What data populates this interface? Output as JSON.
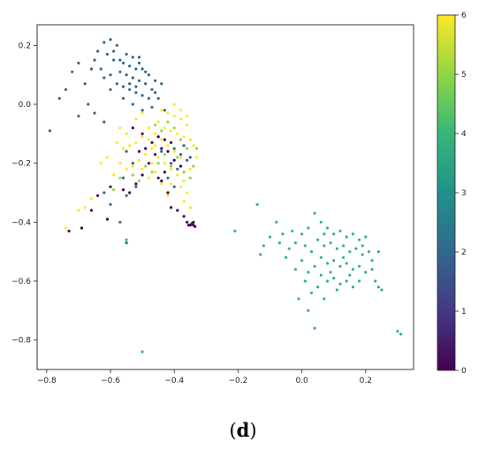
{
  "caption": {
    "open": "(",
    "letter": "d",
    "close": ")"
  },
  "chart_data": {
    "type": "scatter",
    "title": "",
    "xlabel": "",
    "ylabel": "",
    "xlim": [
      -0.83,
      0.35
    ],
    "ylim": [
      -0.9,
      0.27
    ],
    "grid": false,
    "x_ticks": [
      -0.8,
      -0.6,
      -0.4,
      -0.2,
      0.0,
      0.2
    ],
    "x_tick_labels": [
      "−0.8",
      "−0.6",
      "−0.4",
      "−0.2",
      "0.0",
      "0.2"
    ],
    "y_ticks": [
      0.2,
      0.0,
      -0.2,
      -0.4,
      -0.6,
      -0.8
    ],
    "y_tick_labels": [
      "0.2",
      "0.0",
      "−0.2",
      "−0.4",
      "−0.6",
      "−0.8"
    ],
    "colorbar": {
      "colormap": "viridis",
      "range": [
        0,
        6
      ],
      "ticks": [
        0,
        1,
        2,
        3,
        4,
        5,
        6
      ],
      "tick_labels": [
        "0",
        "1",
        "2",
        "3",
        "4",
        "5",
        "6"
      ],
      "stops": [
        "#440154",
        "#443983",
        "#31688e",
        "#21918c",
        "#35b779",
        "#90d743",
        "#fde725"
      ]
    },
    "series": [
      {
        "value": 2,
        "color": "#31688e",
        "points": [
          [
            -0.62,
            0.21
          ],
          [
            -0.6,
            0.22
          ],
          [
            -0.58,
            0.2
          ],
          [
            -0.55,
            0.17
          ],
          [
            -0.53,
            0.16
          ],
          [
            -0.51,
            0.16
          ],
          [
            -0.64,
            0.18
          ],
          [
            -0.61,
            0.17
          ],
          [
            -0.59,
            0.15
          ],
          [
            -0.56,
            0.14
          ],
          [
            -0.54,
            0.13
          ],
          [
            -0.52,
            0.12
          ],
          [
            -0.5,
            0.12
          ],
          [
            -0.48,
            0.1
          ],
          [
            -0.46,
            0.08
          ],
          [
            -0.57,
            0.11
          ],
          [
            -0.55,
            0.1
          ],
          [
            -0.53,
            0.09
          ],
          [
            -0.51,
            0.08
          ],
          [
            -0.49,
            0.07
          ],
          [
            -0.58,
            0.07
          ],
          [
            -0.56,
            0.06
          ],
          [
            -0.54,
            0.05
          ],
          [
            -0.52,
            0.04
          ],
          [
            -0.5,
            0.03
          ],
          [
            -0.48,
            0.02
          ],
          [
            -0.46,
            0.04
          ],
          [
            -0.47,
            -0.01
          ],
          [
            -0.5,
            -0.02
          ],
          [
            -0.53,
            0.0
          ],
          [
            -0.56,
            0.02
          ],
          [
            -0.6,
            0.05
          ],
          [
            -0.62,
            0.09
          ],
          [
            -0.66,
            0.12
          ],
          [
            -0.68,
            0.07
          ],
          [
            -0.7,
            0.14
          ],
          [
            -0.72,
            0.11
          ],
          [
            -0.76,
            0.02
          ],
          [
            -0.74,
            0.05
          ],
          [
            -0.65,
            -0.03
          ],
          [
            -0.62,
            -0.06
          ],
          [
            -0.7,
            -0.04
          ],
          [
            -0.79,
            -0.09
          ],
          [
            -0.67,
            0.0
          ],
          [
            -0.6,
            0.1
          ],
          [
            -0.57,
            0.15
          ],
          [
            -0.54,
            0.07
          ],
          [
            -0.52,
            0.06
          ],
          [
            -0.49,
            0.11
          ],
          [
            -0.47,
            0.05
          ],
          [
            -0.45,
            0.02
          ],
          [
            -0.44,
            0.07
          ],
          [
            -0.43,
            -0.02
          ],
          [
            -0.55,
            -0.16
          ],
          [
            -0.53,
            -0.2
          ],
          [
            -0.56,
            -0.25
          ],
          [
            -0.52,
            -0.28
          ],
          [
            -0.55,
            -0.31
          ],
          [
            -0.6,
            -0.34
          ],
          [
            -0.62,
            -0.3
          ],
          [
            -0.57,
            -0.4
          ],
          [
            -0.55,
            -0.47
          ],
          [
            -0.4,
            -0.15
          ],
          [
            -0.38,
            -0.17
          ],
          [
            -0.36,
            -0.19
          ],
          [
            -0.41,
            -0.2
          ],
          [
            -0.39,
            -0.22
          ],
          [
            -0.37,
            -0.14
          ],
          [
            -0.35,
            -0.18
          ],
          [
            -0.42,
            -0.25
          ],
          [
            -0.44,
            -0.16
          ],
          [
            -0.4,
            -0.28
          ],
          [
            -0.65,
            0.15
          ],
          [
            -0.63,
            0.12
          ],
          [
            -0.59,
            0.18
          ],
          [
            -0.51,
            0.14
          ]
        ]
      },
      {
        "value": 4,
        "color": "#35b779",
        "points": [
          [
            0.04,
            -0.37
          ],
          [
            0.06,
            -0.4
          ],
          [
            0.02,
            -0.42
          ],
          [
            0.0,
            -0.44
          ],
          [
            -0.03,
            -0.43
          ],
          [
            -0.06,
            -0.44
          ],
          [
            -0.08,
            -0.4
          ],
          [
            -0.1,
            -0.45
          ],
          [
            -0.12,
            -0.48
          ],
          [
            -0.14,
            -0.34
          ],
          [
            -0.21,
            -0.43
          ],
          [
            -0.13,
            -0.51
          ],
          [
            0.08,
            -0.42
          ],
          [
            0.1,
            -0.44
          ],
          [
            0.12,
            -0.43
          ],
          [
            0.14,
            -0.45
          ],
          [
            0.16,
            -0.44
          ],
          [
            0.18,
            -0.46
          ],
          [
            0.2,
            -0.45
          ],
          [
            0.05,
            -0.46
          ],
          [
            0.07,
            -0.48
          ],
          [
            0.09,
            -0.47
          ],
          [
            0.11,
            -0.49
          ],
          [
            0.13,
            -0.48
          ],
          [
            0.15,
            -0.5
          ],
          [
            0.17,
            -0.49
          ],
          [
            0.19,
            -0.51
          ],
          [
            0.21,
            -0.5
          ],
          [
            0.03,
            -0.5
          ],
          [
            0.01,
            -0.48
          ],
          [
            -0.02,
            -0.47
          ],
          [
            -0.04,
            -0.49
          ],
          [
            0.06,
            -0.52
          ],
          [
            0.08,
            -0.54
          ],
          [
            0.1,
            -0.53
          ],
          [
            0.12,
            -0.55
          ],
          [
            0.14,
            -0.54
          ],
          [
            0.16,
            -0.56
          ],
          [
            0.18,
            -0.55
          ],
          [
            0.2,
            -0.57
          ],
          [
            0.22,
            -0.56
          ],
          [
            0.04,
            -0.55
          ],
          [
            0.02,
            -0.57
          ],
          [
            0.0,
            -0.53
          ],
          [
            -0.02,
            -0.56
          ],
          [
            0.06,
            -0.58
          ],
          [
            0.08,
            -0.6
          ],
          [
            0.1,
            -0.59
          ],
          [
            0.12,
            -0.61
          ],
          [
            0.14,
            -0.6
          ],
          [
            0.16,
            -0.62
          ],
          [
            0.05,
            -0.62
          ],
          [
            0.03,
            -0.64
          ],
          [
            0.01,
            -0.6
          ],
          [
            0.07,
            -0.66
          ],
          [
            0.02,
            -0.7
          ],
          [
            -0.01,
            -0.66
          ],
          [
            0.04,
            -0.76
          ],
          [
            0.23,
            -0.6
          ],
          [
            0.24,
            -0.62
          ],
          [
            0.25,
            -0.63
          ],
          [
            0.22,
            -0.53
          ],
          [
            0.24,
            -0.5
          ],
          [
            0.18,
            -0.6
          ],
          [
            0.15,
            -0.58
          ],
          [
            0.11,
            -0.63
          ],
          [
            0.09,
            -0.57
          ],
          [
            0.13,
            -0.52
          ],
          [
            0.19,
            -0.48
          ],
          [
            0.07,
            -0.44
          ],
          [
            -0.05,
            -0.52
          ],
          [
            -0.07,
            -0.47
          ],
          [
            0.3,
            -0.77
          ],
          [
            0.31,
            -0.78
          ],
          [
            -0.5,
            -0.84
          ],
          [
            -0.55,
            -0.46
          ]
        ]
      },
      {
        "value": 6,
        "color": "#fde725",
        "points": [
          [
            -0.44,
            -0.02
          ],
          [
            -0.42,
            -0.03
          ],
          [
            -0.4,
            -0.04
          ],
          [
            -0.38,
            -0.05
          ],
          [
            -0.36,
            -0.07
          ],
          [
            -0.45,
            -0.06
          ],
          [
            -0.43,
            -0.08
          ],
          [
            -0.41,
            -0.09
          ],
          [
            -0.39,
            -0.1
          ],
          [
            -0.37,
            -0.11
          ],
          [
            -0.35,
            -0.12
          ],
          [
            -0.46,
            -0.1
          ],
          [
            -0.48,
            -0.12
          ],
          [
            -0.5,
            -0.11
          ],
          [
            -0.52,
            -0.13
          ],
          [
            -0.54,
            -0.14
          ],
          [
            -0.47,
            -0.15
          ],
          [
            -0.45,
            -0.18
          ],
          [
            -0.43,
            -0.2
          ],
          [
            -0.41,
            -0.22
          ],
          [
            -0.39,
            -0.24
          ],
          [
            -0.37,
            -0.26
          ],
          [
            -0.49,
            -0.17
          ],
          [
            -0.51,
            -0.19
          ],
          [
            -0.53,
            -0.21
          ],
          [
            -0.55,
            -0.22
          ],
          [
            -0.57,
            -0.2
          ],
          [
            -0.56,
            -0.15
          ],
          [
            -0.58,
            -0.13
          ],
          [
            -0.34,
            -0.14
          ],
          [
            -0.33,
            -0.18
          ],
          [
            -0.35,
            -0.22
          ],
          [
            -0.38,
            -0.28
          ],
          [
            -0.36,
            -0.3
          ],
          [
            -0.42,
            -0.31
          ],
          [
            -0.46,
            -0.23
          ],
          [
            -0.48,
            -0.25
          ],
          [
            -0.44,
            -0.27
          ],
          [
            -0.61,
            -0.18
          ],
          [
            -0.63,
            -0.2
          ],
          [
            -0.59,
            -0.24
          ],
          [
            -0.66,
            -0.32
          ],
          [
            -0.68,
            -0.35
          ],
          [
            -0.7,
            -0.36
          ],
          [
            -0.74,
            -0.42
          ],
          [
            -0.52,
            -0.05
          ],
          [
            -0.5,
            -0.03
          ],
          [
            -0.48,
            -0.08
          ],
          [
            -0.4,
            0.0
          ],
          [
            -0.38,
            -0.02
          ],
          [
            -0.36,
            -0.04
          ],
          [
            -0.42,
            -0.14
          ],
          [
            -0.4,
            -0.16
          ],
          [
            -0.38,
            -0.18
          ],
          [
            -0.44,
            -0.12
          ],
          [
            -0.46,
            -0.14
          ],
          [
            -0.5,
            -0.22
          ],
          [
            -0.47,
            -0.2
          ],
          [
            -0.55,
            -0.1
          ],
          [
            -0.57,
            -0.08
          ],
          [
            -0.35,
            -0.35
          ],
          [
            -0.37,
            -0.33
          ],
          [
            -0.41,
            -0.27
          ]
        ]
      },
      {
        "value": 0,
        "color": "#440154",
        "points": [
          [
            -0.45,
            -0.11
          ],
          [
            -0.43,
            -0.12
          ],
          [
            -0.41,
            -0.13
          ],
          [
            -0.44,
            -0.15
          ],
          [
            -0.42,
            -0.16
          ],
          [
            -0.46,
            -0.17
          ],
          [
            -0.48,
            -0.2
          ],
          [
            -0.5,
            -0.24
          ],
          [
            -0.52,
            -0.27
          ],
          [
            -0.54,
            -0.3
          ],
          [
            -0.56,
            -0.29
          ],
          [
            -0.6,
            -0.28
          ],
          [
            -0.64,
            -0.31
          ],
          [
            -0.66,
            -0.36
          ],
          [
            -0.69,
            -0.42
          ],
          [
            -0.73,
            -0.43
          ],
          [
            -0.61,
            -0.39
          ],
          [
            -0.44,
            -0.26
          ],
          [
            -0.42,
            -0.3
          ],
          [
            -0.41,
            -0.35
          ],
          [
            -0.39,
            -0.36
          ],
          [
            -0.37,
            -0.38
          ],
          [
            -0.36,
            -0.4
          ],
          [
            -0.35,
            -0.41
          ],
          [
            -0.34,
            -0.41
          ],
          [
            -0.345,
            -0.405
          ],
          [
            -0.335,
            -0.415
          ],
          [
            -0.355,
            -0.41
          ],
          [
            -0.34,
            -0.4
          ],
          [
            -0.47,
            -0.13
          ],
          [
            -0.49,
            -0.15
          ],
          [
            -0.51,
            -0.16
          ],
          [
            -0.4,
            -0.19
          ],
          [
            -0.38,
            -0.21
          ],
          [
            -0.43,
            -0.23
          ],
          [
            -0.45,
            -0.25
          ],
          [
            -0.5,
            -0.1
          ],
          [
            -0.53,
            -0.08
          ]
        ]
      },
      {
        "value": 5,
        "color": "#90d743",
        "points": [
          [
            -0.42,
            -0.06
          ],
          [
            -0.4,
            -0.08
          ],
          [
            -0.38,
            -0.12
          ],
          [
            -0.36,
            -0.15
          ],
          [
            -0.39,
            -0.18
          ],
          [
            -0.41,
            -0.21
          ],
          [
            -0.43,
            -0.17
          ],
          [
            -0.45,
            -0.2
          ],
          [
            -0.37,
            -0.23
          ],
          [
            -0.35,
            -0.25
          ],
          [
            -0.47,
            -0.23
          ],
          [
            -0.49,
            -0.21
          ],
          [
            -0.44,
            -0.09
          ],
          [
            -0.46,
            -0.07
          ],
          [
            -0.51,
            -0.26
          ],
          [
            -0.53,
            -0.24
          ],
          [
            -0.57,
            -0.25
          ],
          [
            -0.59,
            -0.29
          ],
          [
            -0.34,
            -0.21
          ],
          [
            -0.33,
            -0.15
          ]
        ]
      }
    ]
  }
}
